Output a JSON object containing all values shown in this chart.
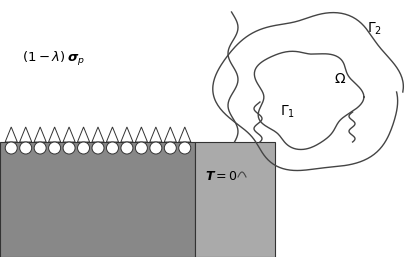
{
  "bg_color": "#ffffff",
  "dark_gray": "#888888",
  "light_gray": "#aaaaaa",
  "contour_color": "#444444",
  "triangle_count": 13,
  "figsize": [
    4.06,
    2.57
  ],
  "dpi": 100
}
